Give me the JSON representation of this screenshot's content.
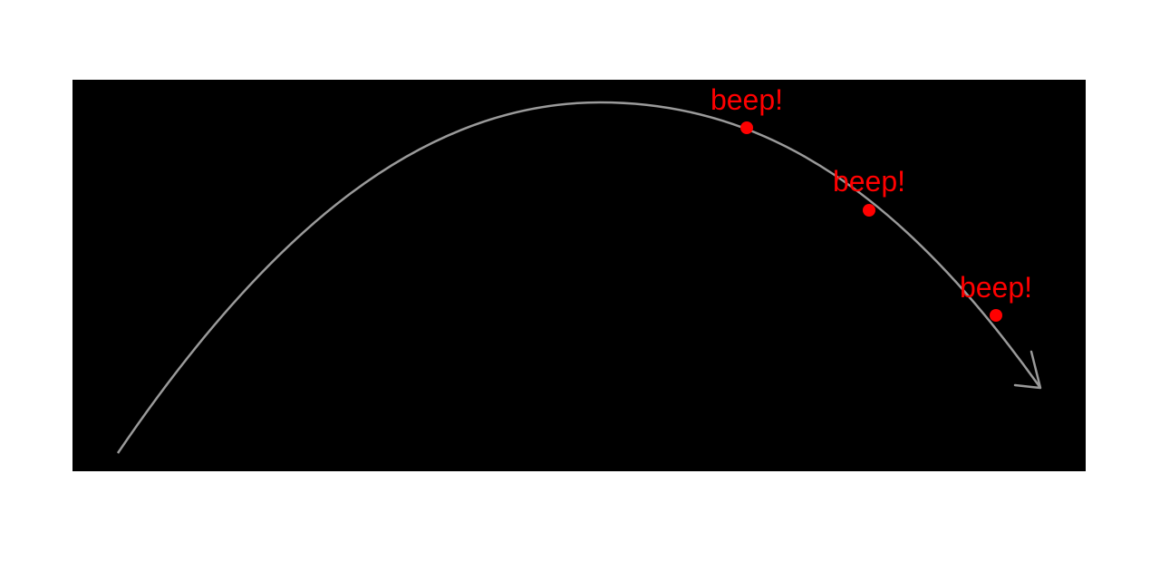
{
  "diagram": {
    "background_color": "#000000",
    "curve_color": "#9a9a9a",
    "marker_color": "#ff0000",
    "markers": [
      {
        "label": "beep!"
      },
      {
        "label": "beep!"
      },
      {
        "label": "beep!"
      }
    ]
  }
}
